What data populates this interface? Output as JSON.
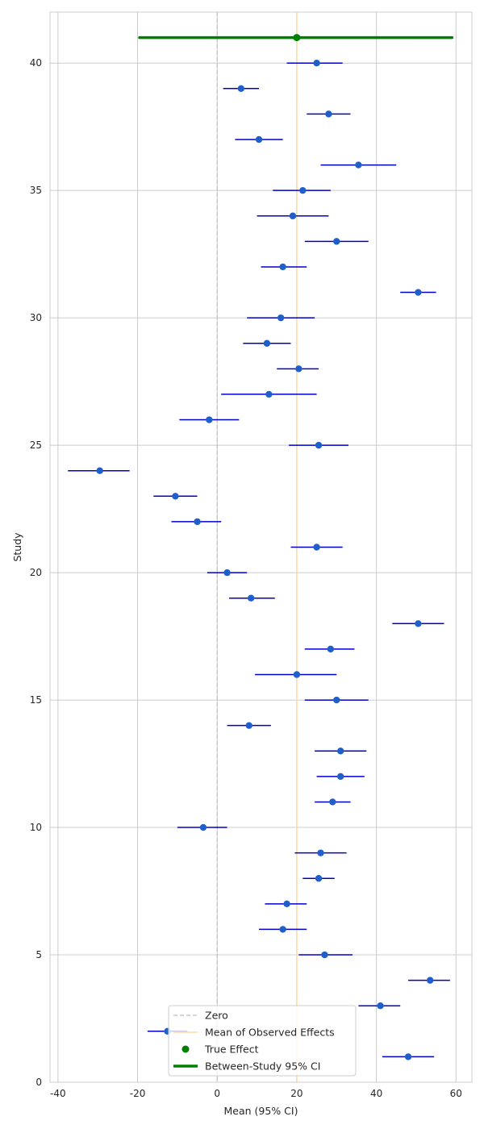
{
  "chart_data": {
    "type": "forest",
    "title": "",
    "xlabel": "Mean (95% CI)",
    "ylabel": "Study",
    "xlim": [
      -42,
      64
    ],
    "ylim": [
      0,
      42
    ],
    "xticks": [
      -40,
      -20,
      0,
      20,
      40,
      60
    ],
    "yticks": [
      0,
      5,
      10,
      15,
      20,
      25,
      30,
      35,
      40
    ],
    "grid": true,
    "legend_position": "bottom-center",
    "reference_lines": {
      "zero": 0,
      "observed_mean": 20
    },
    "true_effect": {
      "y": 41,
      "mean": 20,
      "ci": [
        -19.5,
        59
      ]
    },
    "studies": [
      {
        "study": 1,
        "mean": 48,
        "ci": [
          41.5,
          54.5
        ]
      },
      {
        "study": 2,
        "mean": -12.5,
        "ci": [
          -17.5,
          -7.5
        ]
      },
      {
        "study": 3,
        "mean": 41,
        "ci": [
          35.5,
          46
        ]
      },
      {
        "study": 4,
        "mean": 53.5,
        "ci": [
          48,
          58.5
        ]
      },
      {
        "study": 5,
        "mean": 27,
        "ci": [
          20.5,
          34
        ]
      },
      {
        "study": 6,
        "mean": 16.5,
        "ci": [
          10.5,
          22.5
        ]
      },
      {
        "study": 7,
        "mean": 17.5,
        "ci": [
          12,
          22.5
        ]
      },
      {
        "study": 8,
        "mean": 25.5,
        "ci": [
          21.5,
          29.5
        ]
      },
      {
        "study": 9,
        "mean": 26,
        "ci": [
          19.5,
          32.5
        ]
      },
      {
        "study": 10,
        "mean": -3.5,
        "ci": [
          -10,
          2.5
        ]
      },
      {
        "study": 11,
        "mean": 29,
        "ci": [
          24.5,
          33.5
        ]
      },
      {
        "study": 12,
        "mean": 31,
        "ci": [
          25,
          37
        ]
      },
      {
        "study": 13,
        "mean": 31,
        "ci": [
          24.5,
          37.5
        ]
      },
      {
        "study": 14,
        "mean": 8,
        "ci": [
          2.5,
          13.5
        ]
      },
      {
        "study": 15,
        "mean": 30,
        "ci": [
          22,
          38
        ]
      },
      {
        "study": 16,
        "mean": 20,
        "ci": [
          9.5,
          30
        ]
      },
      {
        "study": 17,
        "mean": 28.5,
        "ci": [
          22,
          34.5
        ]
      },
      {
        "study": 18,
        "mean": 50.5,
        "ci": [
          44,
          57
        ]
      },
      {
        "study": 19,
        "mean": 8.5,
        "ci": [
          3,
          14.5
        ]
      },
      {
        "study": 20,
        "mean": 2.5,
        "ci": [
          -2.5,
          7.5
        ]
      },
      {
        "study": 21,
        "mean": 25,
        "ci": [
          18.5,
          31.5
        ]
      },
      {
        "study": 22,
        "mean": -5,
        "ci": [
          -11.5,
          1
        ]
      },
      {
        "study": 23,
        "mean": -10.5,
        "ci": [
          -16,
          -5
        ]
      },
      {
        "study": 24,
        "mean": -29.5,
        "ci": [
          -37.5,
          -22
        ]
      },
      {
        "study": 25,
        "mean": 25.5,
        "ci": [
          18,
          33
        ]
      },
      {
        "study": 26,
        "mean": -2,
        "ci": [
          -9.5,
          5.5
        ]
      },
      {
        "study": 27,
        "mean": 13,
        "ci": [
          1,
          25
        ]
      },
      {
        "study": 28,
        "mean": 20.5,
        "ci": [
          15,
          25.5
        ]
      },
      {
        "study": 29,
        "mean": 12.5,
        "ci": [
          6.5,
          18.5
        ]
      },
      {
        "study": 30,
        "mean": 16,
        "ci": [
          7.5,
          24.5
        ]
      },
      {
        "study": 31,
        "mean": 50.5,
        "ci": [
          46,
          55
        ]
      },
      {
        "study": 32,
        "mean": 16.5,
        "ci": [
          11,
          22.5
        ]
      },
      {
        "study": 33,
        "mean": 30,
        "ci": [
          22,
          38
        ]
      },
      {
        "study": 34,
        "mean": 19,
        "ci": [
          10,
          28
        ]
      },
      {
        "study": 35,
        "mean": 21.5,
        "ci": [
          14,
          28.5
        ]
      },
      {
        "study": 36,
        "mean": 35.5,
        "ci": [
          26,
          45
        ]
      },
      {
        "study": 37,
        "mean": 10.5,
        "ci": [
          4.5,
          16.5
        ]
      },
      {
        "study": 38,
        "mean": 28,
        "ci": [
          22.5,
          33.5
        ]
      },
      {
        "study": 39,
        "mean": 6,
        "ci": [
          1.5,
          10.5
        ]
      },
      {
        "study": 40,
        "mean": 25,
        "ci": [
          17.5,
          31.5
        ]
      }
    ],
    "legend": [
      {
        "label": "Zero",
        "kind": "dashed-line"
      },
      {
        "label": "Mean of Observed Effects",
        "kind": "line"
      },
      {
        "label": "True Effect",
        "kind": "marker"
      },
      {
        "label": "Between-Study 95% CI",
        "kind": "thick-line"
      }
    ],
    "colors": {
      "grid": "#cccccc",
      "zero_line": "#bfbfbf",
      "mean_line": "#ffd9a8",
      "study_ci": "#0000cc",
      "study_point": "#1f5fcc",
      "true_effect": "#008000",
      "axis_frame": "#cccccc"
    }
  }
}
